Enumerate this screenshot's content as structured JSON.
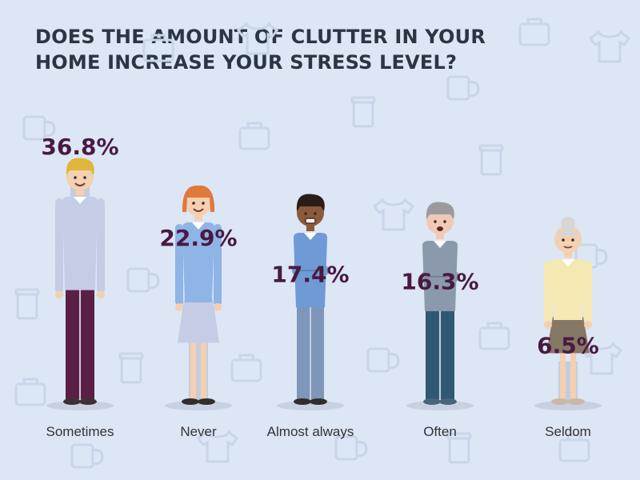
{
  "title": "DOES THE AMOUNT OF CLUTTER IN YOUR HOME INCREASE YOUR STRESS LEVEL?",
  "colors": {
    "background": "#dce6f5",
    "bar": "#c3cddc",
    "value_text": "#4a1942",
    "label_text": "#333333",
    "title_text": "#2c3544",
    "pattern": "#c9d5e8"
  },
  "chart_data": {
    "type": "bar",
    "title": "DOES THE AMOUNT OF CLUTTER IN YOUR HOME INCREASE YOUR STRESS LEVEL?",
    "categories": [
      "Sometimes",
      "Never",
      "Almost always",
      "Often",
      "Seldom"
    ],
    "values": [
      36.8,
      22.9,
      17.4,
      16.3,
      6.5
    ],
    "value_labels": [
      "36.8%",
      "22.9%",
      "17.4%",
      "16.3%",
      "6.5%"
    ],
    "unit": "%",
    "xlabel": "",
    "ylabel": "",
    "grid": false,
    "legend": "none",
    "figures": [
      "man-yellow-hair",
      "woman-red-hair",
      "man-dark-skin-angry",
      "man-grey-hair-frowning",
      "elderly-woman"
    ]
  }
}
